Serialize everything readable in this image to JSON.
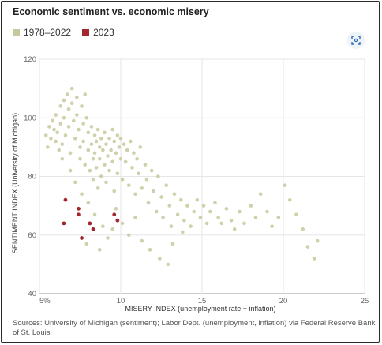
{
  "header": {
    "title": "Economic sentiment vs. economic misery"
  },
  "toolbar": {
    "expand_icon": "expand-icon"
  },
  "legend": {
    "items": [
      {
        "label": "1978–2022",
        "color": "#c8c89c"
      },
      {
        "label": "2023",
        "color": "#a3262e"
      }
    ]
  },
  "footer": {
    "source": "Sources: University of Michigan (sentiment); Labor Dept. (unemployment, inflation) via Federal Reserve Bank of St. Louis"
  },
  "chart_data": {
    "type": "scatter",
    "title": "Economic sentiment vs. economic misery",
    "xlabel": "MISERY INDEX (unemployment rate + inflation)",
    "ylabel": "SENTIMENT INDEX (University of Michigan)",
    "xlim": [
      5,
      25
    ],
    "ylim": [
      40,
      120
    ],
    "x_ticks": [
      5,
      10,
      15,
      20,
      25
    ],
    "x_tick_labels": [
      "5%",
      "10",
      "15",
      "20",
      "25"
    ],
    "y_ticks": [
      40,
      60,
      80,
      100,
      120
    ],
    "grid": true,
    "legend_position": "top-left",
    "series": [
      {
        "name": "1978–2022",
        "color": "#c8c89c",
        "points": [
          [
            5.4,
            94
          ],
          [
            5.5,
            90
          ],
          [
            5.6,
            97
          ],
          [
            5.7,
            93
          ],
          [
            5.8,
            99
          ],
          [
            5.9,
            96
          ],
          [
            6.0,
            101
          ],
          [
            6.0,
            92
          ],
          [
            6.1,
            95
          ],
          [
            6.2,
            89
          ],
          [
            6.3,
            104
          ],
          [
            6.3,
            98
          ],
          [
            6.4,
            91
          ],
          [
            6.5,
            106
          ],
          [
            6.5,
            100
          ],
          [
            6.6,
            94
          ],
          [
            6.7,
            108
          ],
          [
            6.8,
            103
          ],
          [
            6.8,
            97
          ],
          [
            6.9,
            88
          ],
          [
            7.0,
            110
          ],
          [
            7.0,
            105
          ],
          [
            7.1,
            99
          ],
          [
            7.2,
            93
          ],
          [
            7.3,
            107
          ],
          [
            7.3,
            101
          ],
          [
            7.4,
            96
          ],
          [
            7.5,
            90
          ],
          [
            7.5,
            86
          ],
          [
            7.6,
            104
          ],
          [
            7.7,
            98
          ],
          [
            7.7,
            92
          ],
          [
            7.8,
            108
          ],
          [
            7.8,
            84
          ],
          [
            7.9,
            100
          ],
          [
            8.0,
            95
          ],
          [
            8.0,
            89
          ],
          [
            8.1,
            82
          ],
          [
            8.2,
            97
          ],
          [
            8.2,
            91
          ],
          [
            8.3,
            86
          ],
          [
            8.3,
            79
          ],
          [
            8.4,
            94
          ],
          [
            8.4,
            88
          ],
          [
            8.5,
            92
          ],
          [
            8.5,
            83
          ],
          [
            8.6,
            96
          ],
          [
            8.6,
            76
          ],
          [
            8.7,
            90
          ],
          [
            8.7,
            86
          ],
          [
            8.8,
            93
          ],
          [
            8.8,
            80
          ],
          [
            8.9,
            89
          ],
          [
            9.0,
            95
          ],
          [
            9.0,
            84
          ],
          [
            9.1,
            91
          ],
          [
            9.1,
            78
          ],
          [
            9.2,
            87
          ],
          [
            9.3,
            93
          ],
          [
            9.3,
            82
          ],
          [
            9.4,
            89
          ],
          [
            9.5,
            96
          ],
          [
            9.5,
            85
          ],
          [
            9.6,
            92
          ],
          [
            9.6,
            75
          ],
          [
            9.7,
            88
          ],
          [
            9.8,
            94
          ],
          [
            9.8,
            81
          ],
          [
            9.9,
            90
          ],
          [
            10.0,
            86
          ],
          [
            10.0,
            93
          ],
          [
            10.1,
            79
          ],
          [
            10.2,
            91
          ],
          [
            10.3,
            85
          ],
          [
            10.4,
            89
          ],
          [
            10.5,
            77
          ],
          [
            10.6,
            92
          ],
          [
            10.7,
            83
          ],
          [
            10.8,
            88
          ],
          [
            10.9,
            74
          ],
          [
            11.0,
            86
          ],
          [
            11.1,
            81
          ],
          [
            11.2,
            90
          ],
          [
            11.3,
            76
          ],
          [
            11.5,
            84
          ],
          [
            11.6,
            79
          ],
          [
            11.7,
            71
          ],
          [
            11.9,
            82
          ],
          [
            12.0,
            75
          ],
          [
            12.2,
            68
          ],
          [
            12.3,
            80
          ],
          [
            12.5,
            73
          ],
          [
            12.6,
            66
          ],
          [
            12.8,
            77
          ],
          [
            13.0,
            70
          ],
          [
            13.1,
            63
          ],
          [
            13.3,
            74
          ],
          [
            13.5,
            67
          ],
          [
            13.7,
            72
          ],
          [
            13.9,
            65
          ],
          [
            14.1,
            70
          ],
          [
            14.3,
            63
          ],
          [
            14.5,
            68
          ],
          [
            14.7,
            72
          ],
          [
            14.9,
            66
          ],
          [
            15.1,
            70
          ],
          [
            15.3,
            64
          ],
          [
            15.5,
            68
          ],
          [
            15.8,
            71
          ],
          [
            16.0,
            66
          ],
          [
            16.2,
            64
          ],
          [
            16.5,
            69
          ],
          [
            16.8,
            65
          ],
          [
            17.0,
            62
          ],
          [
            17.3,
            68
          ],
          [
            17.6,
            64
          ],
          [
            18.0,
            70
          ],
          [
            18.3,
            66
          ],
          [
            18.6,
            74
          ],
          [
            19.0,
            68
          ],
          [
            19.3,
            63
          ],
          [
            19.7,
            66
          ],
          [
            20.1,
            77
          ],
          [
            20.4,
            72
          ],
          [
            20.8,
            67
          ],
          [
            21.2,
            62
          ],
          [
            21.5,
            56
          ],
          [
            21.9,
            52
          ],
          [
            22.1,
            58
          ],
          [
            6.4,
            86
          ],
          [
            6.9,
            82
          ],
          [
            7.2,
            78
          ],
          [
            7.6,
            74
          ],
          [
            8.0,
            71
          ],
          [
            8.4,
            67
          ],
          [
            8.9,
            63
          ],
          [
            9.2,
            59
          ],
          [
            9.7,
            69
          ],
          [
            10.1,
            64
          ],
          [
            10.5,
            60
          ],
          [
            10.9,
            66
          ],
          [
            11.3,
            58
          ],
          [
            11.8,
            55
          ],
          [
            12.4,
            52
          ],
          [
            13.2,
            57
          ],
          [
            13.8,
            61
          ],
          [
            12.9,
            50
          ],
          [
            7.9,
            57
          ],
          [
            8.7,
            55
          ],
          [
            9.5,
            62
          ]
        ]
      },
      {
        "name": "2023",
        "color": "#a3262e",
        "points": [
          [
            6.6,
            72
          ],
          [
            6.5,
            64
          ],
          [
            7.4,
            69
          ],
          [
            7.4,
            67
          ],
          [
            7.6,
            59
          ],
          [
            8.1,
            64
          ],
          [
            8.3,
            62
          ],
          [
            9.6,
            67
          ],
          [
            9.8,
            65
          ]
        ]
      }
    ]
  }
}
